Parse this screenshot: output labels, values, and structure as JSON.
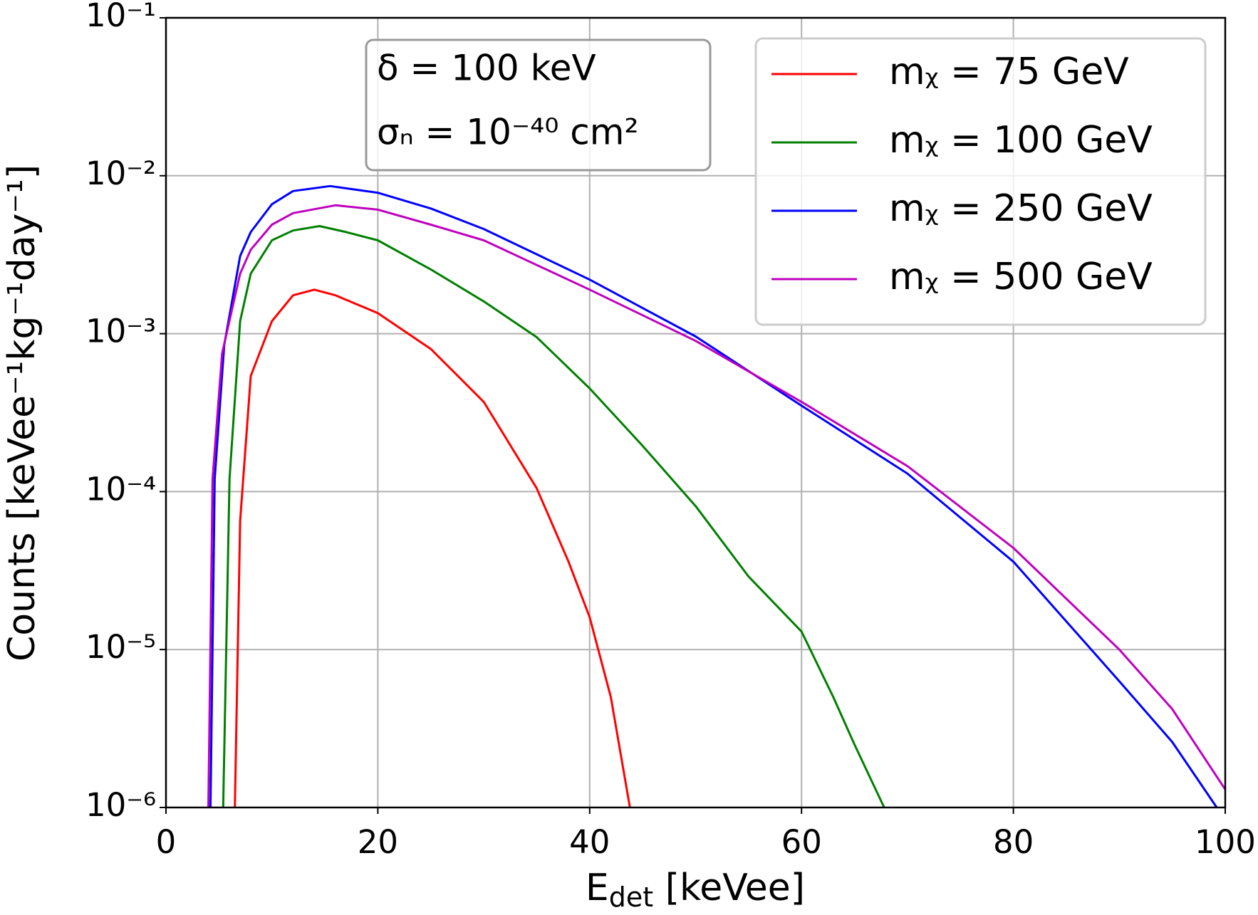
{
  "chart_data": {
    "type": "line",
    "xlabel": [
      "E",
      "det",
      " [keVee]"
    ],
    "ylabel": "Counts [keVee⁻¹kg⁻¹day⁻¹]",
    "annotations": [
      "δ = 100 keV",
      "σₙ = 10⁻⁴⁰ cm²"
    ],
    "xlim": [
      0,
      100
    ],
    "xticks": [
      0,
      20,
      40,
      60,
      80,
      100
    ],
    "ylim": [
      1e-06,
      0.1
    ],
    "yscale": "log",
    "yticks": [
      {
        "value": 1e-06,
        "label": "10⁻⁶"
      },
      {
        "value": 1e-05,
        "label": "10⁻⁵"
      },
      {
        "value": 0.0001,
        "label": "10⁻⁴"
      },
      {
        "value": 0.001,
        "label": "10⁻³"
      },
      {
        "value": 0.01,
        "label": "10⁻²"
      },
      {
        "value": 0.1,
        "label": "10⁻¹"
      }
    ],
    "grid": true,
    "legend": "upper right",
    "series": [
      {
        "name": "mᵪ = 75 GeV",
        "color": "#ff0000",
        "x": [
          6.5,
          7,
          8,
          10,
          12,
          14,
          16,
          20,
          25,
          30,
          35,
          38,
          40,
          42,
          43.8
        ],
        "values": [
          1e-06,
          6.5e-05,
          0.00054,
          0.0012,
          0.00175,
          0.0019,
          0.00175,
          0.00135,
          0.0008,
          0.00037,
          0.000105,
          3.6e-05,
          1.6e-05,
          5e-06,
          1e-06
        ]
      },
      {
        "name": "mᵪ = 100 GeV",
        "color": "#008000",
        "x": [
          5.4,
          6,
          7,
          8,
          10,
          12,
          14.5,
          17,
          20,
          25,
          30,
          35,
          40,
          45,
          50,
          55,
          60,
          63,
          65,
          67.8
        ],
        "values": [
          1e-06,
          0.00012,
          0.0012,
          0.0024,
          0.0039,
          0.0045,
          0.0048,
          0.0044,
          0.0039,
          0.00255,
          0.0016,
          0.00095,
          0.00045,
          0.000195,
          8.1e-05,
          2.9e-05,
          1.3e-05,
          5e-06,
          2.5e-06,
          1e-06
        ]
      },
      {
        "name": "mᵪ = 250 GeV",
        "color": "#0000ff",
        "x": [
          4.2,
          4.6,
          5.5,
          7,
          8,
          10,
          12,
          15.5,
          20,
          25,
          30,
          40,
          50,
          60,
          70,
          80,
          90,
          95,
          99.2
        ],
        "values": [
          1e-06,
          0.00012,
          0.00085,
          0.0031,
          0.0044,
          0.0066,
          0.008,
          0.0086,
          0.0078,
          0.0062,
          0.0046,
          0.0022,
          0.00096,
          0.00035,
          0.00013,
          3.6e-05,
          6.3e-06,
          2.6e-06,
          1e-06
        ]
      },
      {
        "name": "mᵪ = 500 GeV",
        "color": "#bf00bf",
        "x": [
          4.0,
          4.4,
          5.3,
          7,
          8,
          10,
          12,
          16,
          20,
          25,
          30,
          40,
          50,
          60,
          70,
          80,
          90,
          95,
          100
        ],
        "values": [
          1e-06,
          0.00012,
          0.00075,
          0.0024,
          0.0034,
          0.0049,
          0.0058,
          0.0065,
          0.0061,
          0.0049,
          0.0039,
          0.0019,
          0.0009,
          0.00037,
          0.000145,
          4.4e-05,
          1e-05,
          4.2e-06,
          1.3e-06
        ]
      }
    ]
  }
}
